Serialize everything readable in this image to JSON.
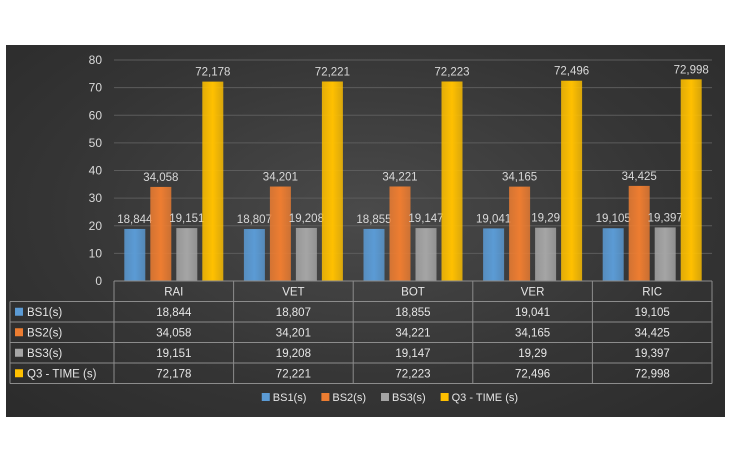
{
  "chart_data": {
    "type": "bar",
    "categories": [
      "RAI",
      "VET",
      "BOT",
      "VER",
      "RIC"
    ],
    "series": [
      {
        "name": "BS1(s)",
        "color": "#5b9bd5",
        "values": [
          18.844,
          18.807,
          18.855,
          19.041,
          19.105
        ],
        "labels": [
          "18,844",
          "18,807",
          "18,855",
          "19,041",
          "19,105"
        ]
      },
      {
        "name": "BS2(s)",
        "color": "#ed7d31",
        "values": [
          34.058,
          34.201,
          34.221,
          34.165,
          34.425
        ],
        "labels": [
          "34,058",
          "34,201",
          "34,221",
          "34,165",
          "34,425"
        ]
      },
      {
        "name": "BS3(s)",
        "color": "#a5a5a5",
        "values": [
          19.151,
          19.208,
          19.147,
          19.29,
          19.397
        ],
        "labels": [
          "19,151",
          "19,208",
          "19,147",
          "19,29",
          "19,397"
        ]
      },
      {
        "name": "Q3 - TIME (s)",
        "color": "#ffc000",
        "values": [
          72.178,
          72.221,
          72.223,
          72.496,
          72.998
        ],
        "labels": [
          "72,178",
          "72,221",
          "72,223",
          "72,496",
          "72,998"
        ]
      }
    ],
    "ylim": [
      0,
      80
    ],
    "yticks": [
      "0",
      "10",
      "20",
      "30",
      "40",
      "50",
      "60",
      "70",
      "80"
    ],
    "grid": true,
    "data_table": true,
    "legend": "bottom",
    "background": "#3a3a3a"
  }
}
